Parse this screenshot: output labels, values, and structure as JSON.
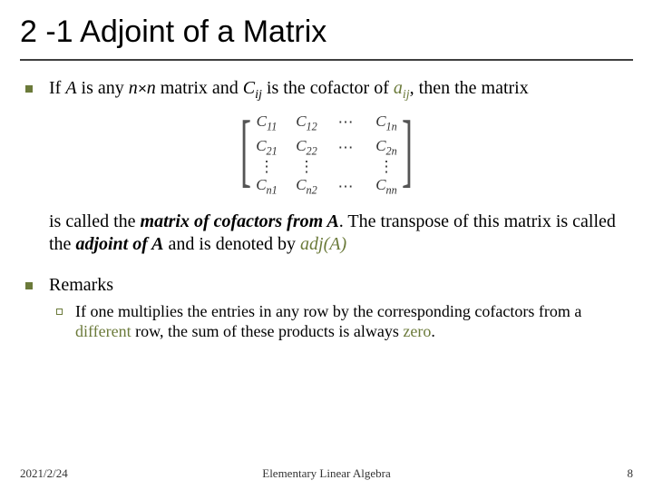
{
  "colors": {
    "accent_olive": "#6b7a3a",
    "title_rule": "#404040",
    "text": "#000000",
    "background": "#ffffff"
  },
  "typography": {
    "title_font": "Arial",
    "title_size_pt": 26,
    "body_font": "Times New Roman",
    "body_size_pt": 15,
    "sub_body_size_pt": 13,
    "footer_size_pt": 10
  },
  "title": "2 -1 Adjoint of a Matrix",
  "bullet1": {
    "pre": "If ",
    "A": "A",
    "mid1": " is any ",
    "nxn": "n×n",
    "mid2": " matrix and ",
    "Cij_C": "C",
    "Cij_ij": "ij",
    "mid3": " is the cofactor of ",
    "aij_a": "a",
    "aij_ij": "ij",
    "tail": ", then the matrix"
  },
  "matrix": {
    "rows": 4,
    "cols": 4,
    "c11": {
      "C": "C",
      "s": "11"
    },
    "c12": {
      "C": "C",
      "s": "12"
    },
    "c1n": {
      "C": "C",
      "s": "1n"
    },
    "c21": {
      "C": "C",
      "s": "21"
    },
    "c22": {
      "C": "C",
      "s": "22"
    },
    "c2n": {
      "C": "C",
      "s": "2n"
    },
    "cn1": {
      "C": "C",
      "s": "n1"
    },
    "cn2": {
      "C": "C",
      "s": "n2"
    },
    "cnn": {
      "C": "C",
      "s": "nn"
    },
    "cdots": "⋯",
    "vdots": "⋮"
  },
  "continuation": {
    "pre": "is called the ",
    "em1": "matrix of cofactors from A",
    "mid": ". The transpose of this matrix is called the ",
    "em2": "adjoint of A",
    "mid2": " and is denoted by ",
    "em3": "adj(A)"
  },
  "bullet2": {
    "label": "Remarks"
  },
  "sub1": {
    "pre": "If one multiplies the entries in any row by the corresponding cofactors from a ",
    "diff": "different",
    "mid": " row, the sum of these products is always ",
    "zero": "zero",
    "tail": "."
  },
  "footer": {
    "date": "2021/2/24",
    "center": "Elementary Linear Algebra",
    "page": "8"
  }
}
